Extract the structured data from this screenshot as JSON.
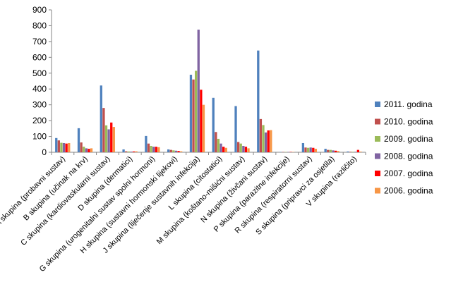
{
  "chart_data": {
    "type": "bar",
    "title": "",
    "xlabel": "",
    "ylabel": "",
    "ylim": [
      0,
      900
    ],
    "yticks": [
      0,
      100,
      200,
      300,
      400,
      500,
      600,
      700,
      800,
      900
    ],
    "grid": false,
    "legend_position": "right",
    "categories": [
      "A skupina (probavni sustav)",
      "B skupina (učinak na krv)",
      "C skupina (kardiovaskularni sustav)",
      "D skupina (dermatici)",
      "G skupina (urogenitalni sustav spolni hormoni)",
      "H skupina (sustavni hormonski lijekovi)",
      "J skupina (liječenje sustavnih infekcija)",
      "L skupina (citostatici)",
      "M skupina (koštano-mišićni sustav)",
      "N skupina (živčani sustav)",
      "P skupina (parazitne infekcije)",
      "R skupina (respiratorni sustav)",
      "S skupina (pripravci za osjetila)",
      "V skupina (različito)"
    ],
    "series": [
      {
        "name": "2011. godina",
        "color": "#4F81BD",
        "values": [
          90,
          152,
          422,
          18,
          103,
          18,
          490,
          344,
          292,
          643,
          2,
          58,
          22,
          5
        ]
      },
      {
        "name": "2010. godina",
        "color": "#C0504D",
        "values": [
          75,
          62,
          280,
          6,
          55,
          15,
          460,
          128,
          65,
          210,
          2,
          30,
          15,
          3
        ]
      },
      {
        "name": "2009. godina",
        "color": "#9BBB59",
        "values": [
          60,
          35,
          170,
          5,
          40,
          12,
          515,
          85,
          55,
          172,
          2,
          28,
          15,
          3
        ]
      },
      {
        "name": "2008. godina",
        "color": "#8064A2",
        "values": [
          58,
          25,
          145,
          4,
          35,
          10,
          775,
          55,
          40,
          125,
          2,
          30,
          12,
          3
        ]
      },
      {
        "name": "2007. godina",
        "color": "#FF0000",
        "values": [
          55,
          22,
          188,
          5,
          35,
          8,
          395,
          35,
          35,
          138,
          2,
          28,
          10,
          15
        ]
      },
      {
        "name": "2006. godina",
        "color": "#F79646",
        "values": [
          58,
          25,
          160,
          6,
          32,
          6,
          300,
          28,
          25,
          140,
          2,
          22,
          8,
          4
        ]
      }
    ]
  }
}
